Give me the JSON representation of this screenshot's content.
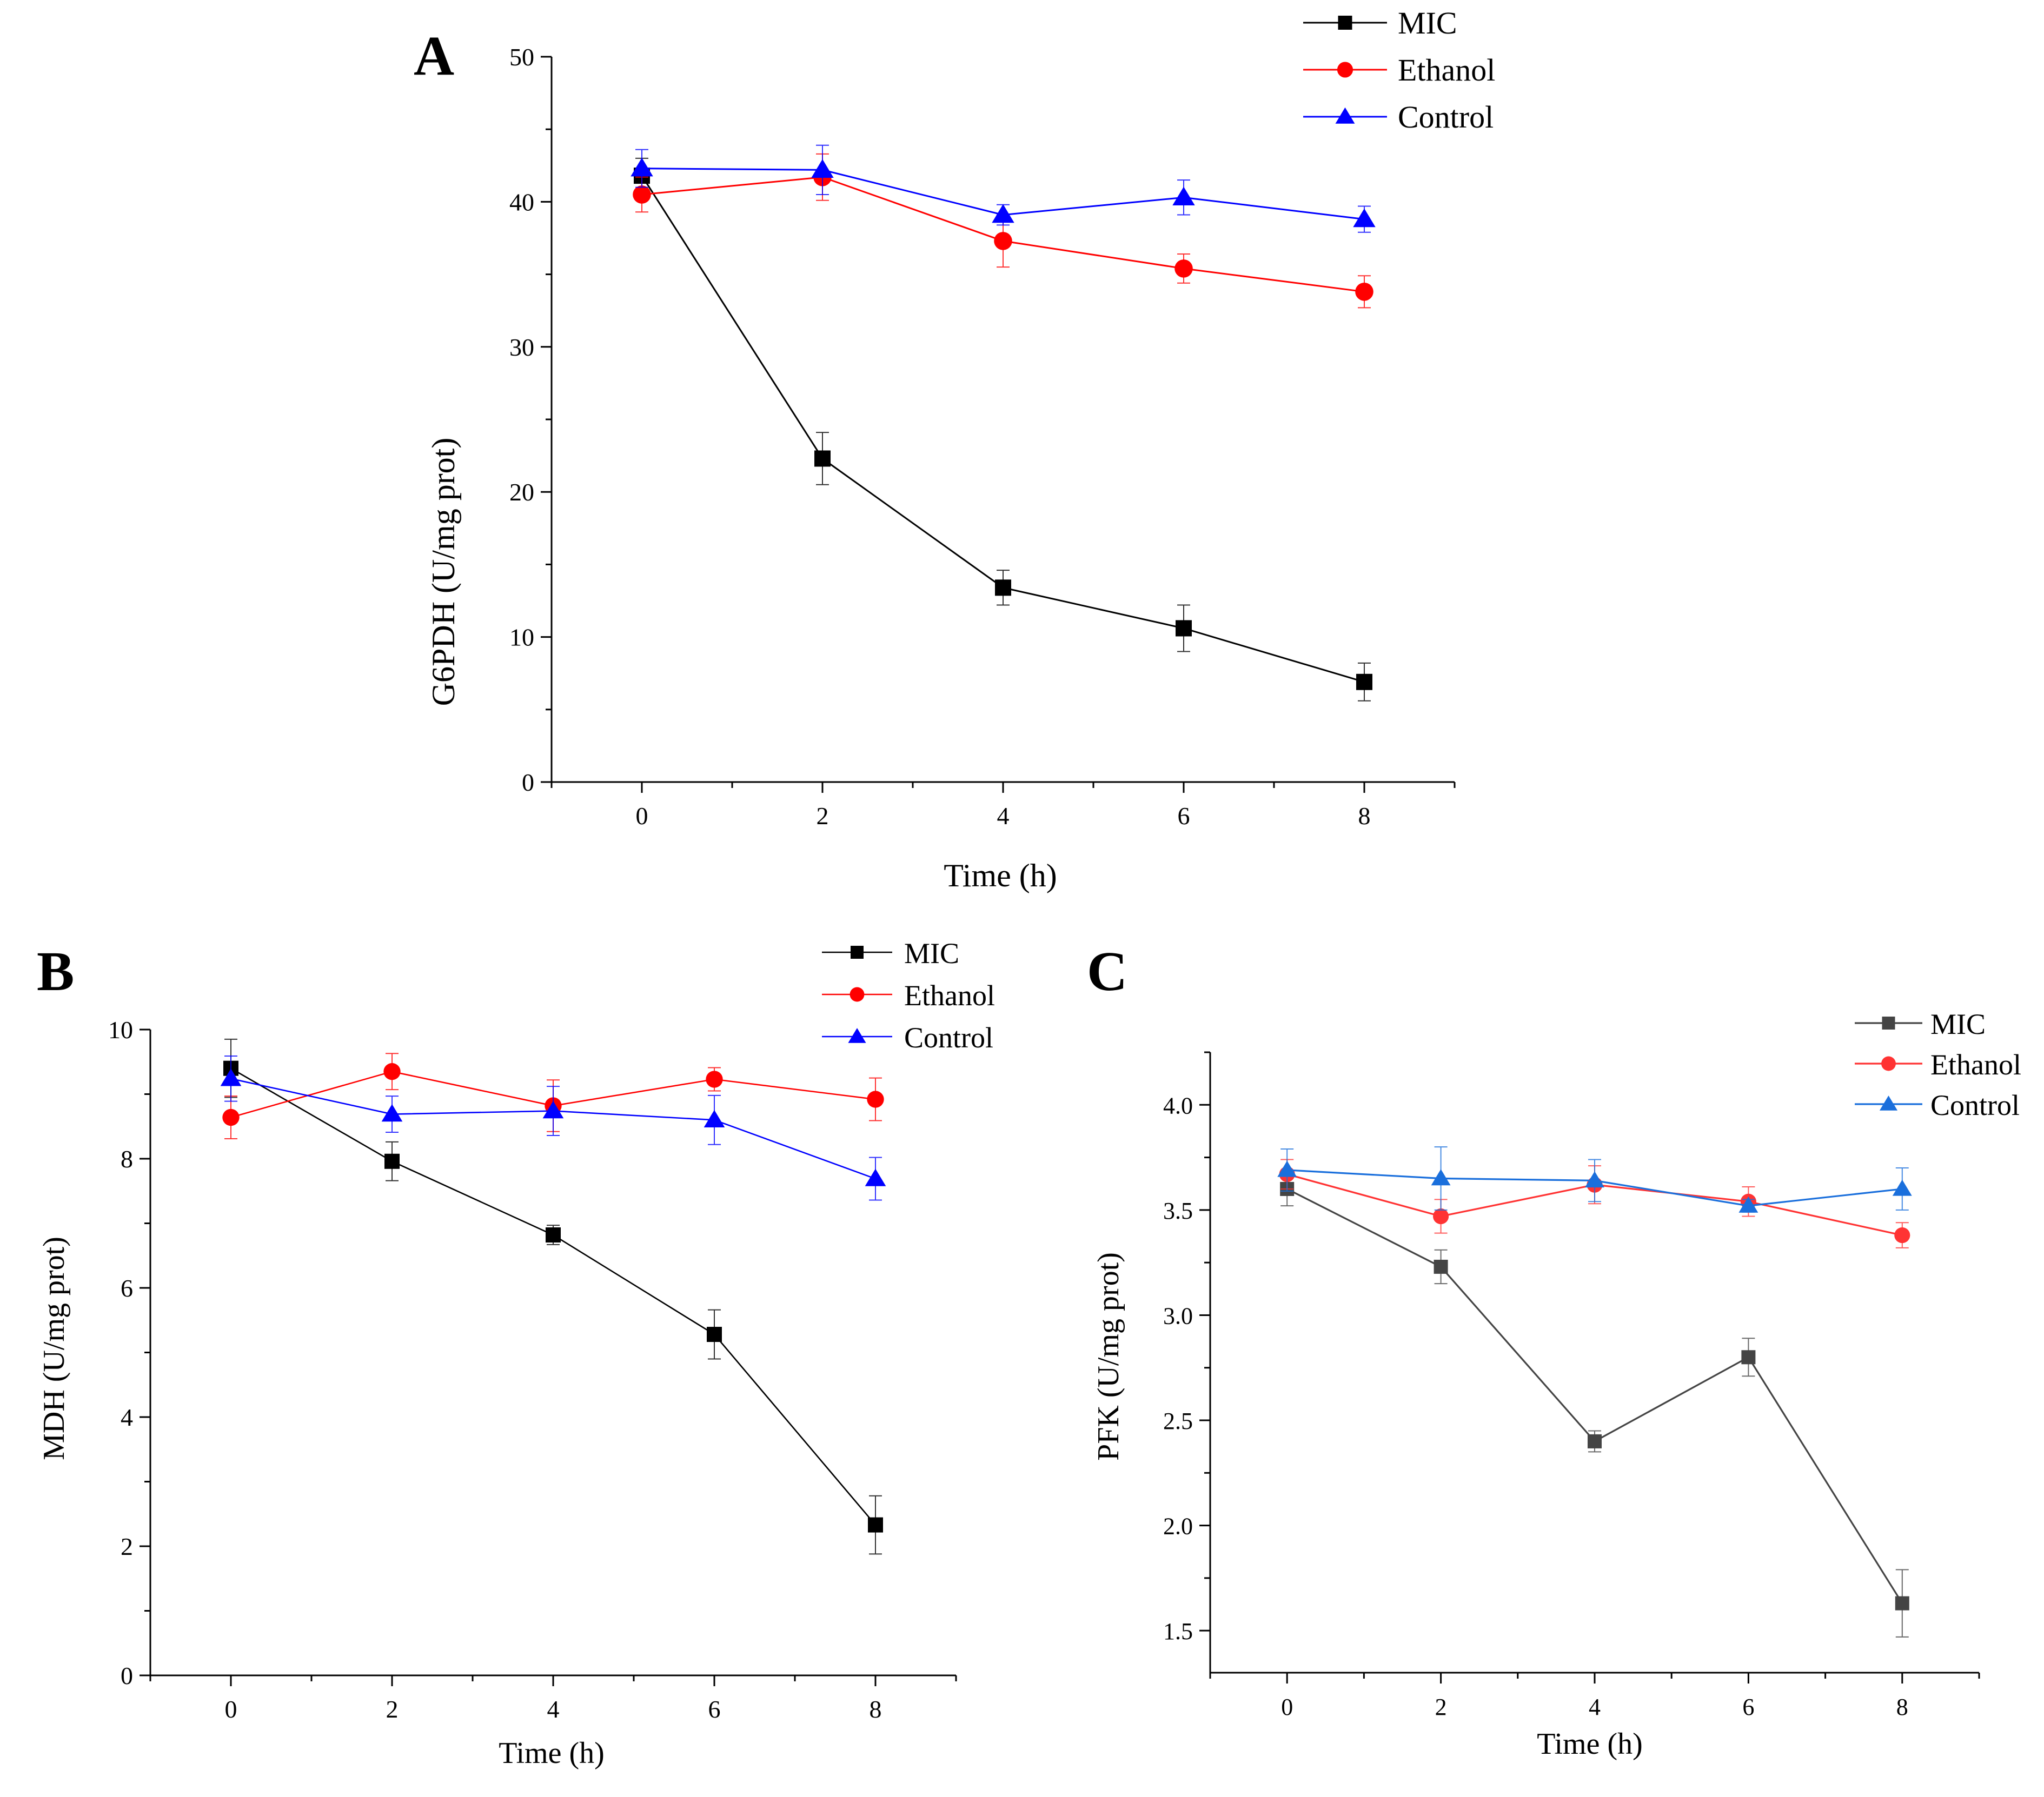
{
  "chart_data": [
    {
      "panel": "A",
      "type": "line",
      "title": "",
      "xlabel": "Time (h)",
      "ylabel": "G6PDH (U/mg prot)",
      "xlim": [
        -1,
        9
      ],
      "ylim": [
        0,
        50
      ],
      "xticks": [
        "0",
        "2",
        "4",
        "6",
        "8"
      ],
      "yticks": [
        "0",
        "10",
        "20",
        "30",
        "40",
        "50"
      ],
      "x": [
        0,
        2,
        4,
        6,
        8
      ],
      "grid": false,
      "legend_position": "top-right",
      "series": [
        {
          "name": "MIC",
          "color": "#000000",
          "marker": "square",
          "values": [
            41.8,
            22.3,
            13.4,
            10.6,
            6.9
          ],
          "errors": [
            1.2,
            1.8,
            1.2,
            1.6,
            1.3
          ]
        },
        {
          "name": "Ethanol",
          "color": "#ff0000",
          "marker": "circle",
          "values": [
            40.5,
            41.7,
            37.3,
            35.4,
            33.8
          ],
          "errors": [
            1.2,
            1.6,
            1.8,
            1.0,
            1.1
          ]
        },
        {
          "name": "Control",
          "color": "#0000ff",
          "marker": "triangle",
          "values": [
            42.3,
            42.2,
            39.1,
            40.3,
            38.8
          ],
          "errors": [
            1.3,
            1.7,
            0.7,
            1.2,
            0.9
          ]
        }
      ]
    },
    {
      "panel": "B",
      "type": "line",
      "title": "",
      "xlabel": "Time (h)",
      "ylabel": "MDH (U/mg prot)",
      "xlim": [
        -1,
        9
      ],
      "ylim": [
        0,
        10
      ],
      "xticks": [
        "0",
        "2",
        "4",
        "6",
        "8"
      ],
      "yticks": [
        "0",
        "2",
        "4",
        "6",
        "8",
        "10"
      ],
      "x": [
        0,
        2,
        4,
        6,
        8
      ],
      "grid": false,
      "legend_position": "top-right",
      "series": [
        {
          "name": "MIC",
          "color": "#000000",
          "marker": "square",
          "values": [
            9.4,
            7.96,
            6.82,
            5.28,
            2.33
          ],
          "errors": [
            0.45,
            0.3,
            0.15,
            0.38,
            0.45
          ]
        },
        {
          "name": "Ethanol",
          "color": "#ff0000",
          "marker": "circle",
          "values": [
            8.64,
            9.35,
            8.82,
            9.23,
            8.92
          ],
          "errors": [
            0.33,
            0.28,
            0.4,
            0.18,
            0.33
          ]
        },
        {
          "name": "Control",
          "color": "#0000ff",
          "marker": "triangle",
          "values": [
            9.24,
            8.69,
            8.74,
            8.6,
            7.69
          ],
          "errors": [
            0.35,
            0.28,
            0.38,
            0.38,
            0.33
          ]
        }
      ]
    },
    {
      "panel": "C",
      "type": "line",
      "title": "",
      "xlabel": "Time (h)",
      "ylabel": "PFK (U/mg prot)",
      "xlim": [
        -1,
        9
      ],
      "ylim": [
        1.3,
        4.25
      ],
      "xticks": [
        "0",
        "2",
        "4",
        "6",
        "8"
      ],
      "yticks": [
        "1.5",
        "2.0",
        "2.5",
        "3.0",
        "3.5",
        "4.0"
      ],
      "x": [
        0,
        2,
        4,
        6,
        8
      ],
      "grid": false,
      "legend_position": "top-right",
      "series": [
        {
          "name": "MIC",
          "color": "#444444",
          "marker": "square",
          "values": [
            3.6,
            3.23,
            2.4,
            2.8,
            1.63
          ],
          "errors": [
            0.08,
            0.08,
            0.05,
            0.09,
            0.16
          ]
        },
        {
          "name": "Ethanol",
          "color": "#ff3333",
          "marker": "circle",
          "values": [
            3.67,
            3.47,
            3.62,
            3.54,
            3.38
          ],
          "errors": [
            0.07,
            0.08,
            0.09,
            0.07,
            0.06
          ]
        },
        {
          "name": "Control",
          "color": "#1a6fdc",
          "marker": "triangle",
          "values": [
            3.69,
            3.65,
            3.64,
            3.52,
            3.6
          ],
          "errors": [
            0.1,
            0.15,
            0.1,
            0.03,
            0.1
          ]
        }
      ]
    }
  ]
}
